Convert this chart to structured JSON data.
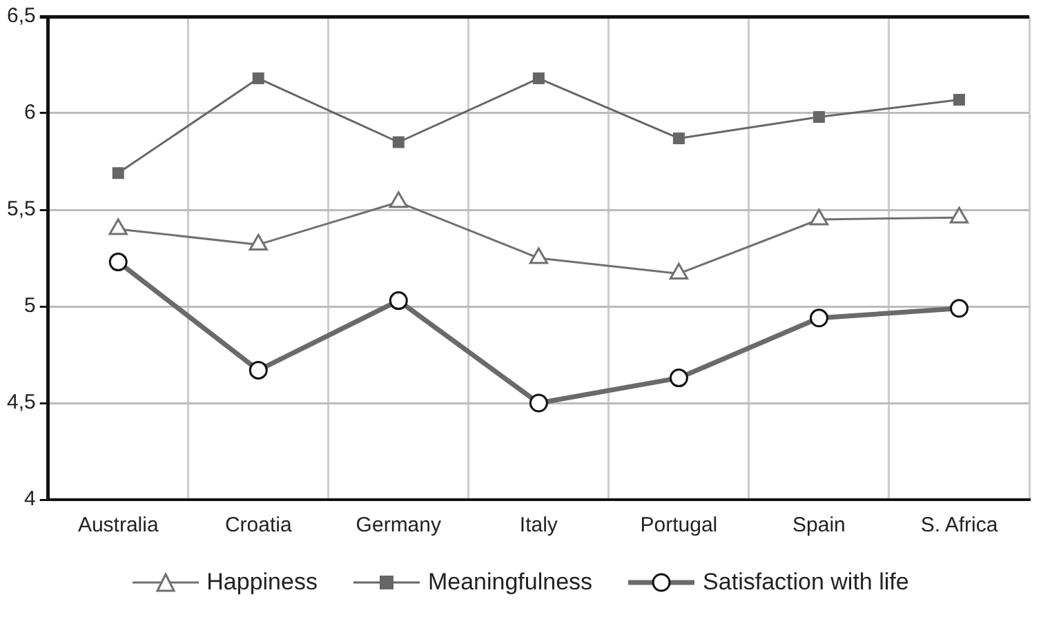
{
  "chart_data": {
    "type": "line",
    "categories": [
      "Australia",
      "Croatia",
      "Germany",
      "Italy",
      "Portugal",
      "Spain",
      "S. Africa"
    ],
    "series": [
      {
        "name": "Happiness",
        "color": "#707070",
        "marker": "triangle",
        "values": [
          5.4,
          5.32,
          5.54,
          5.25,
          5.17,
          5.45,
          5.46
        ]
      },
      {
        "name": "Meaningfulness",
        "color": "#666666",
        "marker": "square",
        "values": [
          5.69,
          6.18,
          5.85,
          6.18,
          5.87,
          5.98,
          6.07
        ]
      },
      {
        "name": "Satisfaction with life",
        "color": "#6a6a6a",
        "marker": "circle",
        "values": [
          5.23,
          4.67,
          5.03,
          4.5,
          4.63,
          4.94,
          4.99
        ]
      }
    ],
    "ylim": [
      4,
      6.5
    ],
    "yticks": [
      4,
      {
        "value": 4.5,
        "label": "4,5"
      },
      5,
      {
        "value": 5.5,
        "label": "5,5"
      },
      6,
      {
        "value": 6.5,
        "label": "6,5"
      }
    ],
    "grid": true,
    "legend": "bottom"
  }
}
